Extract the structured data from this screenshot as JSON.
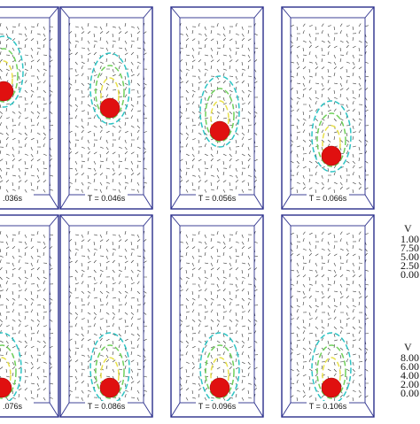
{
  "panels": [
    {
      "label": ".036s"
    },
    {
      "label": "T = 0.046s"
    },
    {
      "label": "T = 0.056s"
    },
    {
      "label": "T = 0.066s"
    },
    {
      "label": ".076s"
    },
    {
      "label": "T = 0.086s"
    },
    {
      "label": "T = 0.096s"
    },
    {
      "label": "T = 0.106s"
    }
  ],
  "legends": [
    {
      "title": "V",
      "values": [
        "1.00",
        "7.50",
        "5.00",
        "2.50",
        "0.00"
      ]
    },
    {
      "title": "V",
      "values": [
        "8.00",
        "6.00",
        "4.00",
        "2.00",
        "0.00"
      ]
    }
  ]
}
